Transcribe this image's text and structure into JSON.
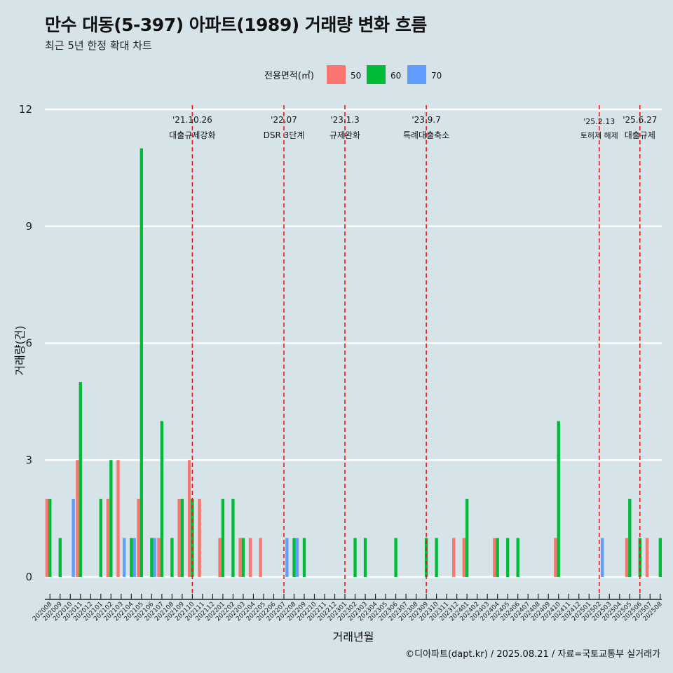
{
  "header": {
    "title": "만수 대동(5-397) 아파트(1989) 거래량 변화 흐름",
    "subtitle": "최근 5년 한정 확대 차트"
  },
  "caption": "©디아파트(dapt.kr) / 2025.08.21 / 자료=국토교통부 실거래가",
  "colors": {
    "background": "#d6e4ea",
    "gridline": "#ffffff",
    "event_line": "#e8191a",
    "series_50": "#f8766d",
    "series_60": "#00ba38",
    "series_70": "#619cff"
  },
  "chart_data": {
    "type": "bar",
    "title": "만수 대동(5-397) 아파트(1989) 거래량 변화 흐름",
    "subtitle": "최근 5년 한정 확대 차트",
    "xlabel": "거래년월",
    "ylabel": "거래량(건)",
    "ylim": [
      0,
      12
    ],
    "yticks": [
      0,
      3,
      6,
      9,
      12
    ],
    "grid": "horizontal",
    "legend": {
      "title": "전용면적(㎡)",
      "position": "top"
    },
    "categories": [
      "202008",
      "202009",
      "202010",
      "202011",
      "202012",
      "202101",
      "202102",
      "202103",
      "202104",
      "202105",
      "202106",
      "202107",
      "202108",
      "202109",
      "202110",
      "202111",
      "202112",
      "202201",
      "202202",
      "202203",
      "202204",
      "202205",
      "202206",
      "202207",
      "202208",
      "202209",
      "202210",
      "202211",
      "202212",
      "202301",
      "202302",
      "202303",
      "202304",
      "202305",
      "202306",
      "202307",
      "202308",
      "202309",
      "202310",
      "202311",
      "202312",
      "202401",
      "202402",
      "202403",
      "202404",
      "202405",
      "202406",
      "202407",
      "202408",
      "202409",
      "202410",
      "202411",
      "202412",
      "202501",
      "202502",
      "202503",
      "202504",
      "202505",
      "202506",
      "202507",
      "202508"
    ],
    "series": [
      {
        "name": "50",
        "color": "#f8766d",
        "values": [
          2,
          0,
          0,
          3,
          0,
          0,
          2,
          3,
          0,
          2,
          0,
          1,
          0,
          2,
          3,
          2,
          0,
          1,
          0,
          1,
          1,
          1,
          0,
          0,
          0,
          0,
          0,
          0,
          0,
          0,
          0,
          0,
          0,
          0,
          0,
          0,
          0,
          0,
          0,
          0,
          1,
          1,
          0,
          0,
          1,
          0,
          0,
          0,
          0,
          0,
          1,
          0,
          0,
          0,
          0,
          0,
          0,
          1,
          0,
          1,
          0
        ]
      },
      {
        "name": "60",
        "color": "#00ba38",
        "values": [
          2,
          1,
          0,
          5,
          0,
          2,
          3,
          0,
          1,
          11,
          1,
          4,
          1,
          2,
          2,
          0,
          0,
          2,
          2,
          1,
          0,
          0,
          0,
          0,
          1,
          1,
          0,
          0,
          0,
          0,
          1,
          1,
          0,
          0,
          1,
          0,
          0,
          1,
          1,
          0,
          0,
          2,
          0,
          0,
          1,
          1,
          1,
          0,
          0,
          0,
          4,
          0,
          0,
          0,
          0,
          0,
          0,
          2,
          1,
          0,
          1
        ]
      },
      {
        "name": "70",
        "color": "#619cff",
        "values": [
          0,
          0,
          2,
          0,
          0,
          0,
          0,
          1,
          1,
          0,
          1,
          0,
          0,
          0,
          0,
          0,
          0,
          0,
          0,
          0,
          0,
          0,
          0,
          1,
          1,
          0,
          0,
          0,
          0,
          0,
          0,
          0,
          0,
          0,
          0,
          0,
          0,
          0,
          0,
          0,
          0,
          0,
          0,
          0,
          0,
          0,
          0,
          0,
          0,
          0,
          0,
          0,
          0,
          0,
          1,
          0,
          0,
          0,
          0,
          0,
          0
        ]
      }
    ],
    "events": [
      {
        "date": "'21.10.26",
        "label": "대출규제강화",
        "month": "202110"
      },
      {
        "date": "'22.07",
        "label": "DSR 3단계",
        "month": "202207"
      },
      {
        "date": "'23.1.3",
        "label": "규제완화",
        "month": "202301"
      },
      {
        "date": "'23.9.7",
        "label": "특례대출축소",
        "month": "202309"
      },
      {
        "date": "'25.2.13",
        "label": "토허제 해제",
        "month": "202502"
      },
      {
        "date": "'25.6.27",
        "label": "대출규제",
        "month": "202506"
      }
    ]
  }
}
